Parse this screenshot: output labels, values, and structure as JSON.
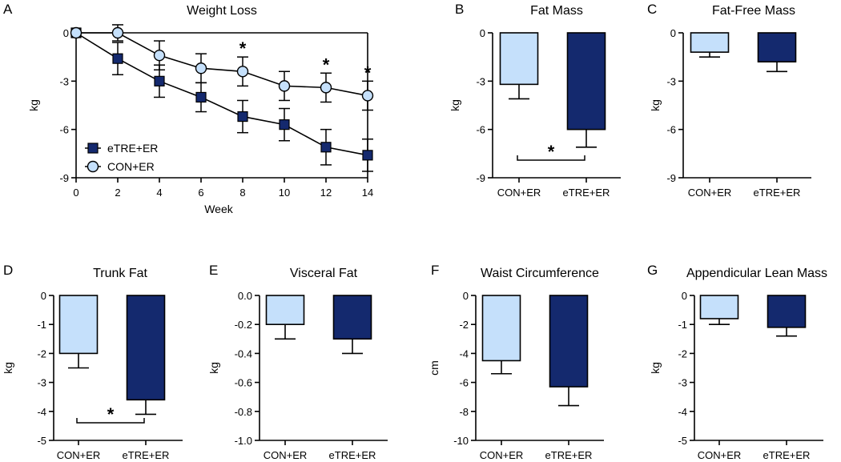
{
  "colors": {
    "con": "#c5e0fb",
    "etre": "#14296e",
    "axis": "#000000"
  },
  "groups": [
    "CON+ER",
    "eTRE+ER"
  ],
  "chart_data": [
    {
      "panel": "A",
      "type": "line",
      "title": "Weight Loss",
      "xlabel": "Week",
      "ylabel": "kg",
      "x": [
        0,
        2,
        4,
        6,
        8,
        10,
        12,
        14
      ],
      "xlim": [
        0,
        14
      ],
      "ylim": [
        -9,
        0
      ],
      "xticks": [
        "0",
        "2",
        "4",
        "6",
        "8",
        "10",
        "12",
        "14"
      ],
      "yticks": [
        "0",
        "-3",
        "-6",
        "-9"
      ],
      "series": [
        {
          "name": "eTRE+ER",
          "marker": "square",
          "values": [
            0,
            -1.6,
            -3.0,
            -4.0,
            -5.2,
            -5.7,
            -7.1,
            -7.6
          ],
          "errors": [
            0,
            1.0,
            1.0,
            0.9,
            1.0,
            1.0,
            1.1,
            1.0
          ]
        },
        {
          "name": "CON+ER",
          "marker": "circle",
          "values": [
            0,
            0,
            -1.4,
            -2.2,
            -2.4,
            -3.3,
            -3.4,
            -3.9
          ],
          "errors": [
            0,
            0.5,
            0.9,
            0.9,
            0.9,
            0.9,
            0.9,
            0.9
          ]
        }
      ],
      "significance": [
        {
          "x": 8,
          "label": "*"
        },
        {
          "x": 12,
          "label": "*"
        },
        {
          "x": 14,
          "label": "*"
        }
      ],
      "legend": [
        "eTRE+ER",
        "CON+ER"
      ]
    },
    {
      "panel": "B",
      "type": "bar",
      "title": "Fat Mass",
      "ylabel": "kg",
      "ylim": [
        -9,
        0
      ],
      "yticks": [
        "0",
        "-3",
        "-6",
        "-9"
      ],
      "categories": [
        "CON+ER",
        "eTRE+ER"
      ],
      "values": [
        -3.2,
        -6.0
      ],
      "errors": [
        0.9,
        1.1
      ],
      "significance": "*"
    },
    {
      "panel": "C",
      "type": "bar",
      "title": "Fat-Free Mass",
      "ylabel": "kg",
      "ylim": [
        -9,
        0
      ],
      "yticks": [
        "0",
        "-3",
        "-6",
        "-9"
      ],
      "categories": [
        "CON+ER",
        "eTRE+ER"
      ],
      "values": [
        -1.2,
        -1.8
      ],
      "errors": [
        0.3,
        0.6
      ]
    },
    {
      "panel": "D",
      "type": "bar",
      "title": "Trunk Fat",
      "ylabel": "kg",
      "ylim": [
        -5,
        0
      ],
      "yticks": [
        "0",
        "-1",
        "-2",
        "-3",
        "-4",
        "-5"
      ],
      "categories": [
        "CON+ER",
        "eTRE+ER"
      ],
      "values": [
        -2.0,
        -3.6
      ],
      "errors": [
        0.5,
        0.5
      ],
      "significance": "*"
    },
    {
      "panel": "E",
      "type": "bar",
      "title": "Visceral Fat",
      "ylabel": "kg",
      "ylim": [
        -1.0,
        0
      ],
      "yticks": [
        "0.0",
        "-0.2",
        "-0.4",
        "-0.6",
        "-0.8",
        "-1.0"
      ],
      "categories": [
        "CON+ER",
        "eTRE+ER"
      ],
      "values": [
        -0.2,
        -0.3
      ],
      "errors": [
        0.1,
        0.1
      ]
    },
    {
      "panel": "F",
      "type": "bar",
      "title": "Waist Circumference",
      "ylabel": "cm",
      "ylim": [
        -10,
        0
      ],
      "yticks": [
        "0",
        "-2",
        "-4",
        "-6",
        "-8",
        "-10"
      ],
      "categories": [
        "CON+ER",
        "eTRE+ER"
      ],
      "values": [
        -4.5,
        -6.3
      ],
      "errors": [
        0.9,
        1.3
      ]
    },
    {
      "panel": "G",
      "type": "bar",
      "title": "Appendicular Lean Mass",
      "ylabel": "kg",
      "ylim": [
        -5,
        0
      ],
      "yticks": [
        "0",
        "-1",
        "-2",
        "-3",
        "-4",
        "-5"
      ],
      "categories": [
        "CON+ER",
        "eTRE+ER"
      ],
      "values": [
        -0.8,
        -1.1
      ],
      "errors": [
        0.2,
        0.3
      ]
    }
  ]
}
